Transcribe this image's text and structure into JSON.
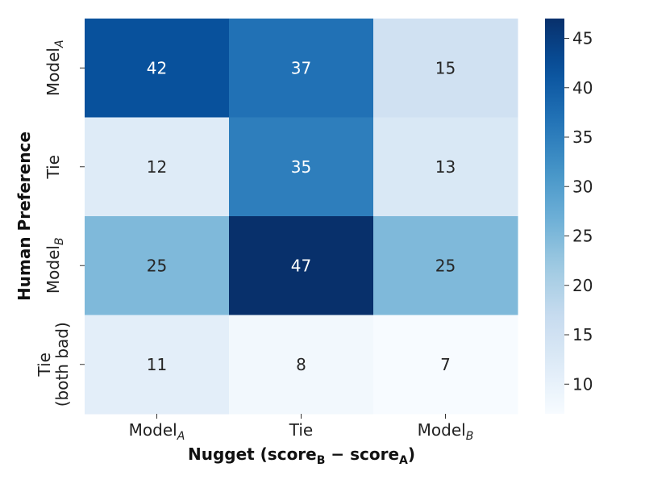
{
  "chart_data": {
    "type": "heatmap",
    "colormap": "Blues",
    "x_categories": [
      {
        "base": "Model",
        "sub": "A"
      },
      {
        "base": "Tie",
        "sub": ""
      },
      {
        "base": "Model",
        "sub": "B"
      }
    ],
    "y_categories": [
      {
        "lines": [
          "Model"
        ],
        "sub": "A"
      },
      {
        "lines": [
          "Tie"
        ],
        "sub": ""
      },
      {
        "lines": [
          "Model"
        ],
        "sub": "B"
      },
      {
        "lines": [
          "Tie",
          "(both bad)"
        ],
        "sub": ""
      }
    ],
    "values": [
      [
        42,
        37,
        15
      ],
      [
        12,
        35,
        13
      ],
      [
        25,
        47,
        25
      ],
      [
        11,
        8,
        7
      ]
    ],
    "xlabel": {
      "parts": [
        "Nugget (score",
        "B",
        " − score",
        "A",
        ")"
      ]
    },
    "ylabel": "Human Preference",
    "colorbar": {
      "vmin": 7,
      "vmax": 47,
      "ticks": [
        10,
        15,
        20,
        25,
        30,
        35,
        40,
        45
      ]
    }
  }
}
